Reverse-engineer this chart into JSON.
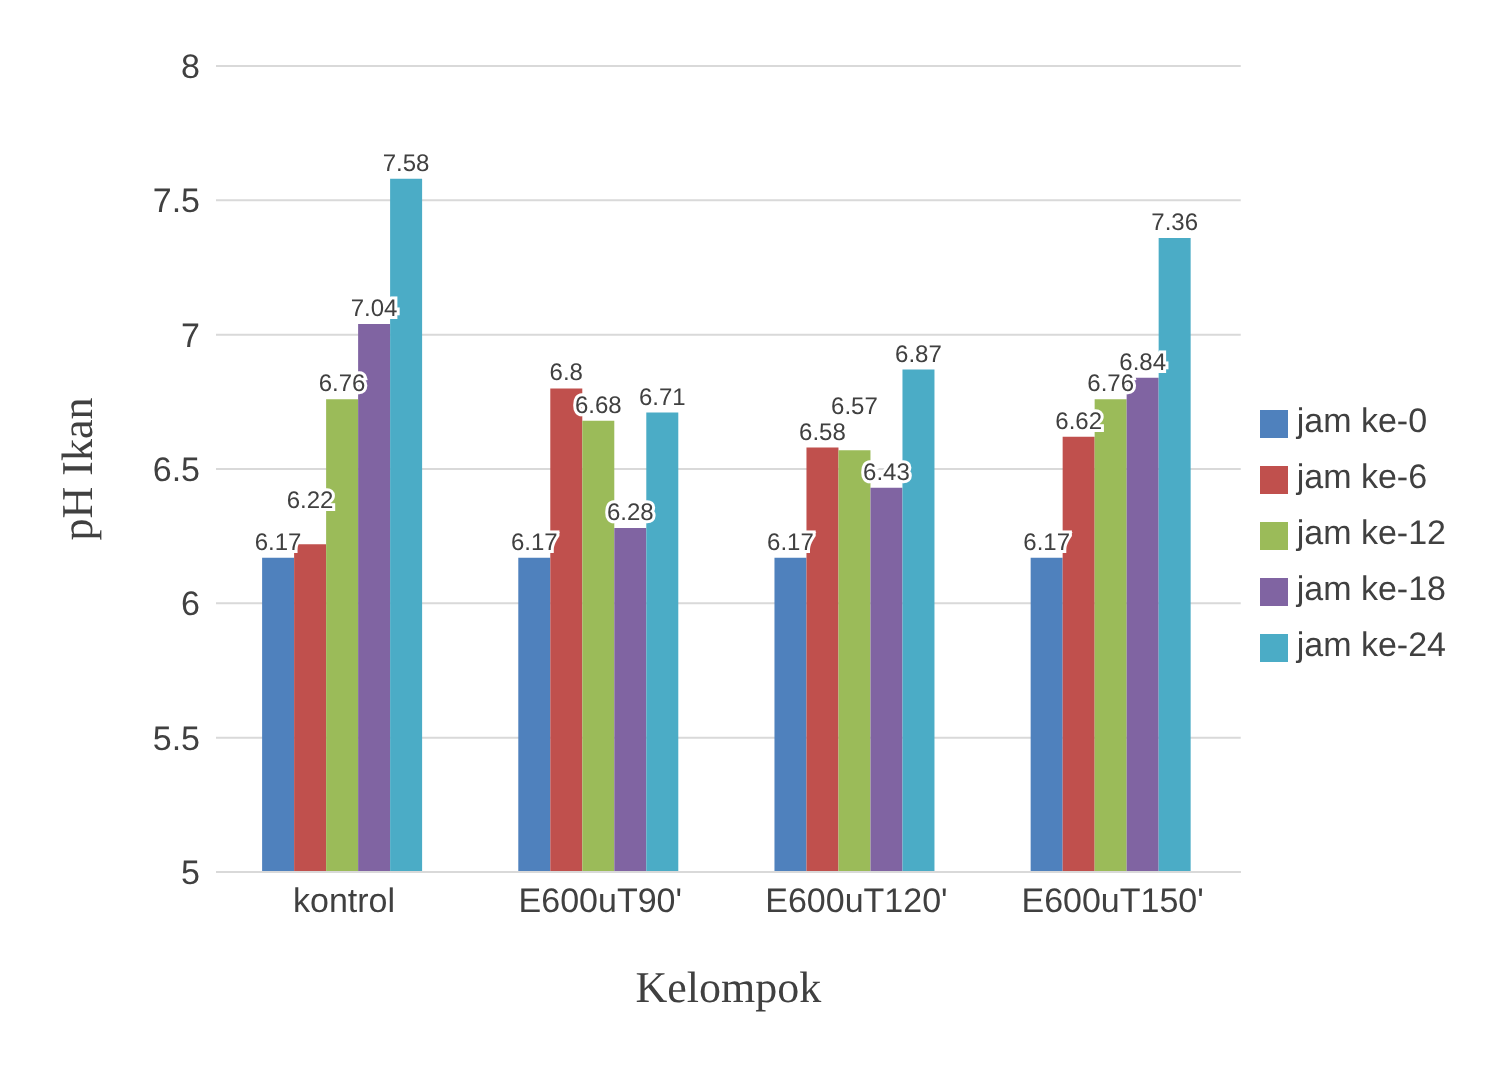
{
  "chart_data": {
    "type": "bar",
    "xlabel": "Kelompok",
    "ylabel": "pH Ikan",
    "categories": [
      "kontrol",
      "E600uT90'",
      "E600uT120'",
      "E600uT150'"
    ],
    "series": [
      {
        "name": "jam ke-0",
        "color": "#4f81bd",
        "values": [
          6.17,
          6.17,
          6.17,
          6.17
        ]
      },
      {
        "name": "jam ke-6",
        "color": "#c0504d",
        "values": [
          6.22,
          6.8,
          6.58,
          6.62
        ]
      },
      {
        "name": "jam ke-12",
        "color": "#9bbb59",
        "values": [
          6.76,
          6.68,
          6.57,
          6.76
        ]
      },
      {
        "name": "jam ke-18",
        "color": "#8064a2",
        "values": [
          7.04,
          6.28,
          6.43,
          6.84
        ]
      },
      {
        "name": "jam ke-24",
        "color": "#4bacc6",
        "values": [
          7.58,
          6.71,
          6.87,
          7.36
        ]
      }
    ],
    "ylim": [
      5,
      8
    ],
    "yticks": [
      5,
      5.5,
      6,
      6.5,
      7,
      7.5,
      8
    ],
    "grid": "y",
    "legend": "right",
    "data_labels": true
  }
}
